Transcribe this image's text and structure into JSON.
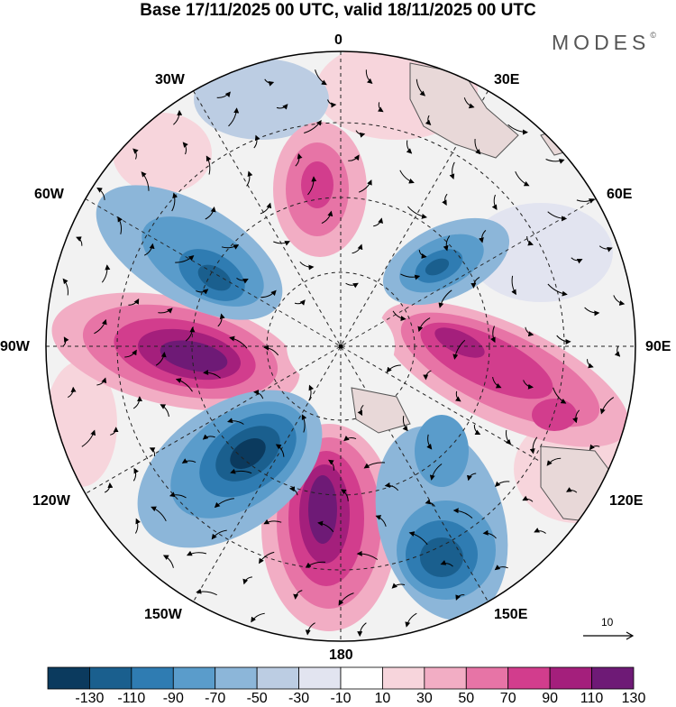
{
  "title": "Base 17/11/2025 00 UTC, valid 18/11/2025 00 UTC",
  "brand": "MODES",
  "brand_mark": "©",
  "longitude_labels": {
    "top": "0",
    "top_right": "30E",
    "right_upper": "60E",
    "right": "90E",
    "right_lower": "120E",
    "bottom_right": "150E",
    "bottom": "180",
    "bottom_left": "150W",
    "left_lower": "120W",
    "left": "90W",
    "left_upper": "60W",
    "top_left": "30W"
  },
  "vector_scale_label": "10",
  "colorbar": {
    "colors": [
      "#0b3a5e",
      "#1a5f8e",
      "#2f7cb2",
      "#5a9ccb",
      "#8cb6d9",
      "#bccde3",
      "#e2e4f0",
      "#ffffff",
      "#f7d5dc",
      "#f2adc4",
      "#e774a6",
      "#d23d8d",
      "#a41f7c",
      "#6e1a76"
    ],
    "tick_labels": [
      "-130",
      "-110",
      "-90",
      "-70",
      "-50",
      "-30",
      "-10",
      "10",
      "30",
      "50",
      "70",
      "90",
      "110",
      "130"
    ]
  },
  "anomaly_blobs": [
    {
      "name": "blob-pos-180",
      "color": "#e774a6",
      "core": "#6e1a76"
    },
    {
      "name": "blob-pos-90w",
      "color": "#e774a6",
      "core": "#6e1a76"
    },
    {
      "name": "blob-pos-90e",
      "color": "#e774a6",
      "core": "#a41f7c"
    },
    {
      "name": "blob-pos-0",
      "color": "#f2adc4",
      "core": "#d23d8d"
    },
    {
      "name": "blob-neg-120w",
      "color": "#5a9ccb",
      "core": "#0b3a5e"
    },
    {
      "name": "blob-neg-150e",
      "color": "#5a9ccb",
      "core": "#1a5f8e"
    },
    {
      "name": "blob-neg-60w",
      "color": "#5a9ccb",
      "core": "#1a5f8e"
    },
    {
      "name": "blob-neg-45e",
      "color": "#5a9ccb",
      "core": "#1a5f8e"
    }
  ]
}
